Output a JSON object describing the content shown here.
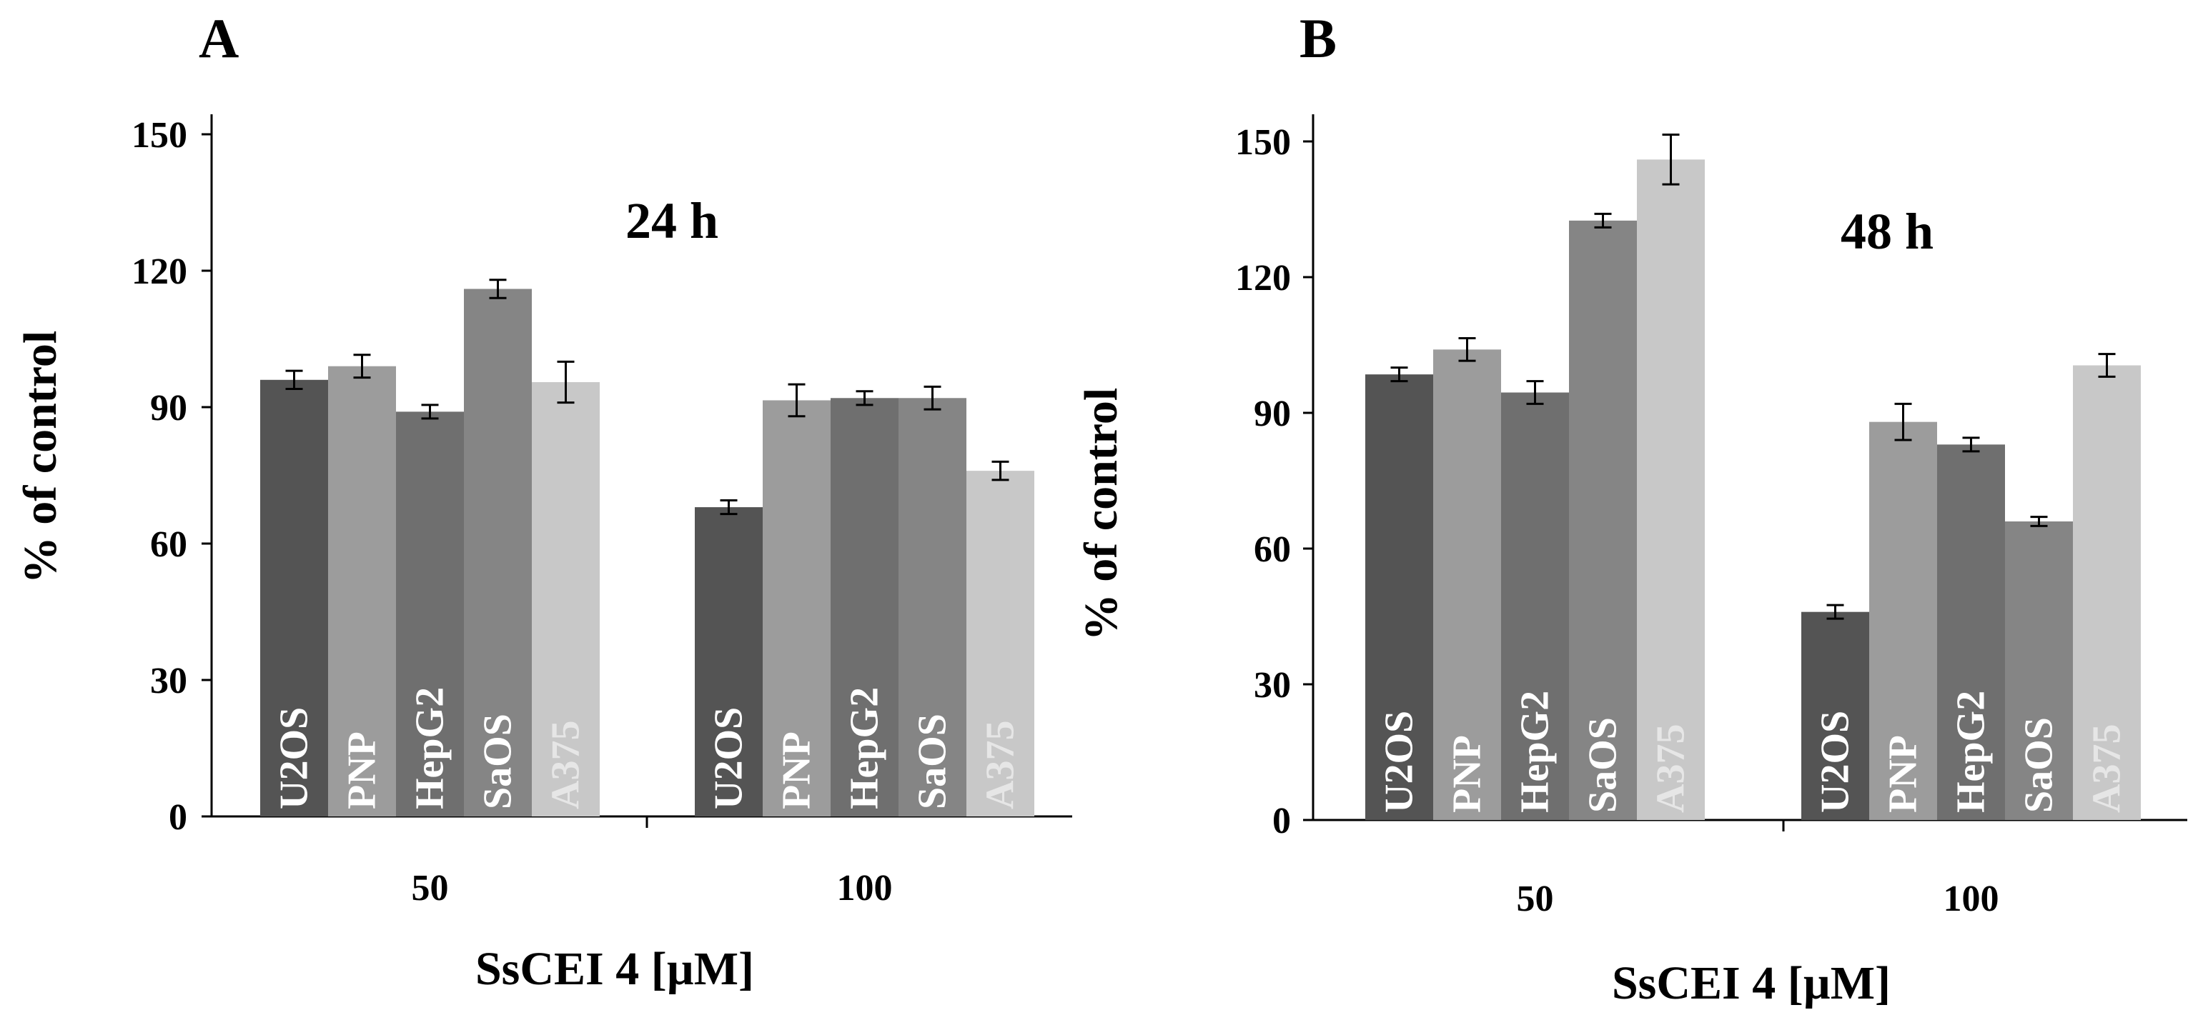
{
  "chart_data": [
    {
      "type": "bar",
      "panel": "A",
      "title": "24 h",
      "xlabel": "SsCEI 4 [µM]",
      "ylabel": "% of control",
      "ylim": [
        0,
        160
      ],
      "yticks": [
        0,
        30,
        60,
        90,
        120,
        150
      ],
      "categories": [
        "50",
        "100"
      ],
      "series": [
        {
          "name": "U2OS",
          "color": "#545454",
          "label_color": "#ffffff",
          "values": [
            96,
            68
          ],
          "errors": [
            2,
            1.5
          ]
        },
        {
          "name": "PNP",
          "color": "#9c9c9c",
          "label_color": "#ffffff",
          "values": [
            99,
            91.5
          ],
          "errors": [
            2.5,
            3.5
          ]
        },
        {
          "name": "HepG2",
          "color": "#6f6f6f",
          "label_color": "#ffffff",
          "values": [
            89,
            92
          ],
          "errors": [
            1.5,
            1.5
          ]
        },
        {
          "name": "SaOS",
          "color": "#858585",
          "label_color": "#ffffff",
          "values": [
            116,
            92
          ],
          "errors": [
            2,
            2.5
          ]
        },
        {
          "name": "A375",
          "color": "#c8c8c8",
          "label_color": "#e6e6e6",
          "values": [
            95.5,
            76
          ],
          "errors": [
            4.5,
            2
          ]
        }
      ]
    },
    {
      "type": "bar",
      "panel": "B",
      "title": "48 h",
      "xlabel": "SsCEI 4 [µM]",
      "ylabel": "% of control",
      "ylim": [
        0,
        160
      ],
      "yticks": [
        0,
        30,
        60,
        90,
        120,
        150
      ],
      "categories": [
        "50",
        "100"
      ],
      "series": [
        {
          "name": "U2OS",
          "color": "#545454",
          "label_color": "#ffffff",
          "values": [
            98.5,
            46
          ],
          "errors": [
            1.5,
            1.5
          ]
        },
        {
          "name": "PNP",
          "color": "#9c9c9c",
          "label_color": "#ffffff",
          "values": [
            104,
            88
          ],
          "errors": [
            2.5,
            4
          ]
        },
        {
          "name": "HepG2",
          "color": "#6f6f6f",
          "label_color": "#ffffff",
          "values": [
            94.5,
            83
          ],
          "errors": [
            2.5,
            1.5
          ]
        },
        {
          "name": "SaOS",
          "color": "#858585",
          "label_color": "#ffffff",
          "values": [
            132.5,
            66
          ],
          "errors": [
            1.5,
            1
          ]
        },
        {
          "name": "A375",
          "color": "#c8c8c8",
          "label_color": "#e6e6e6",
          "values": [
            146,
            100.5
          ],
          "errors": [
            5.5,
            2.5
          ]
        }
      ]
    }
  ]
}
